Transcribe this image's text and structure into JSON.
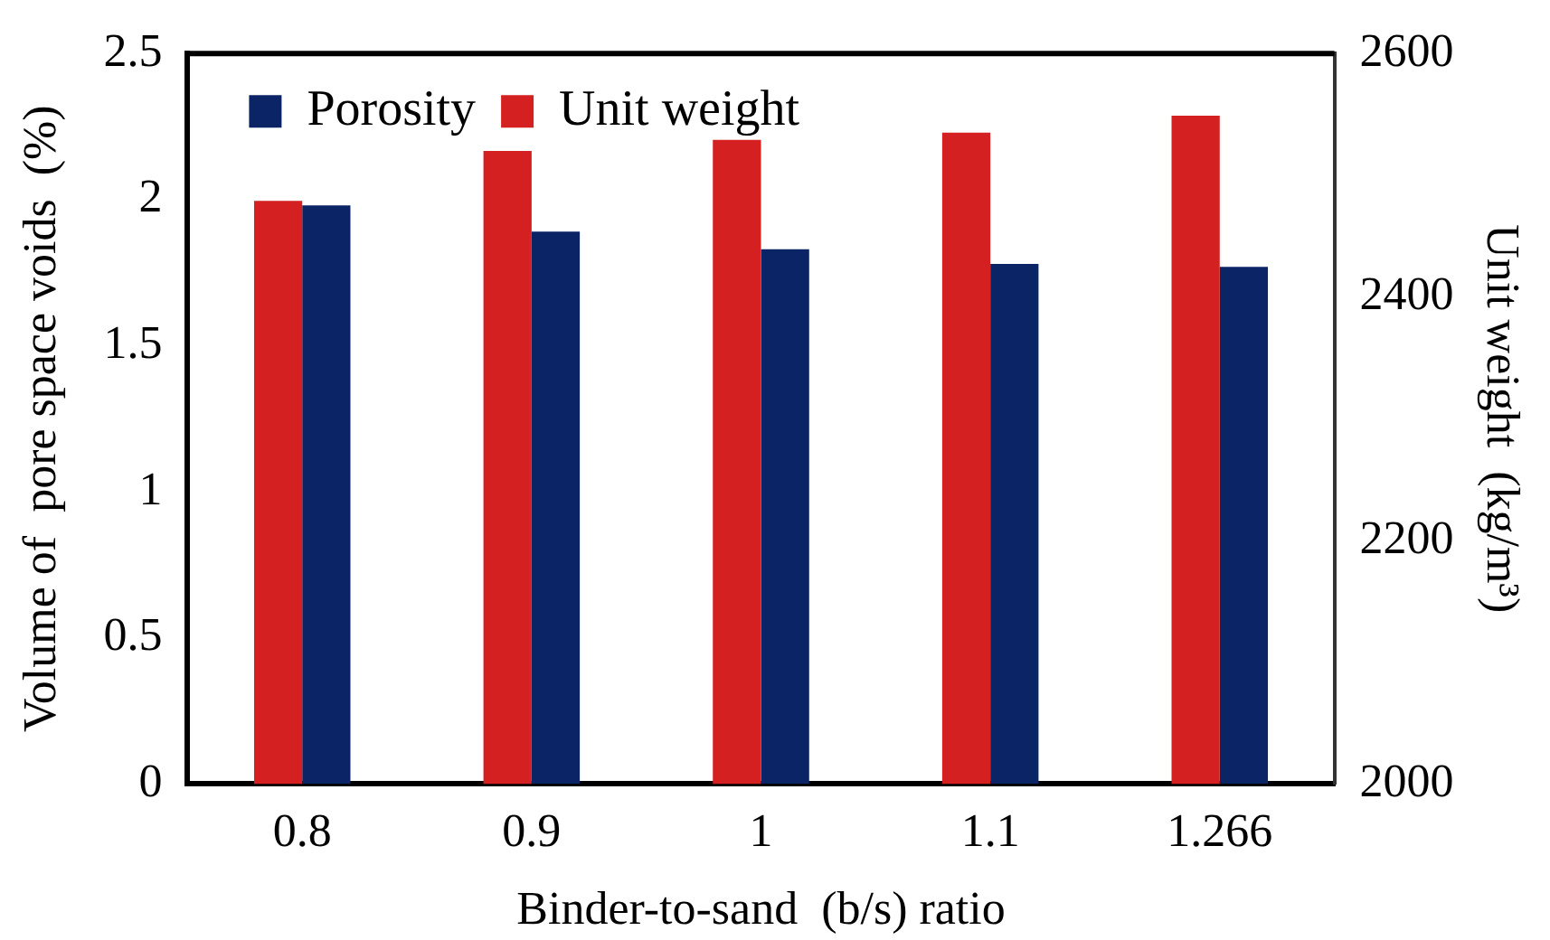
{
  "chart_data": {
    "type": "bar",
    "xlabel": "Binder-to-sand  (b/s) ratio",
    "ylabel": "Volume of  pore space voids  (%)",
    "y2label": "Unit weight  (kg/m³)",
    "categories": [
      "0.8",
      "0.9",
      "1",
      "1.1",
      "1.266"
    ],
    "series": [
      {
        "name": "Unit weight",
        "color": "#d42020",
        "axis": "y2",
        "values": [
          2479,
          2520,
          2529,
          2535,
          2549
        ]
      },
      {
        "name": "Porosity",
        "color": "#0b2466",
        "values": [
          1.98,
          1.89,
          1.83,
          1.78,
          1.77
        ]
      }
    ],
    "ylim": [
      0,
      2.5
    ],
    "yticks": [
      0,
      0.5,
      1,
      1.5,
      2,
      2.5
    ],
    "y2lim": [
      2000,
      2600
    ],
    "y2ticks": [
      2000,
      2200,
      2400,
      2600
    ],
    "grid": false,
    "legend": "top left"
  }
}
